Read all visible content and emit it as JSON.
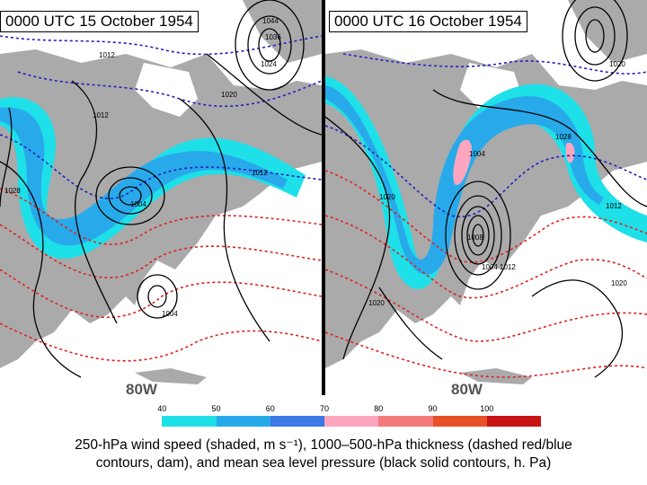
{
  "panels": [
    {
      "title": "0000 UTC 15 October 1954",
      "lon_label": "80W",
      "pressure_labels": [
        "1012",
        "1020",
        "1012",
        "1028",
        "1004",
        "1012",
        "1004",
        "1024",
        "1036",
        "1044"
      ]
    },
    {
      "title": "0000 UTC 16 October 1954",
      "lon_label": "80W",
      "pressure_labels": [
        "1004",
        "1020",
        "1028",
        "1020",
        "1012",
        "1008",
        "1004",
        "1012",
        "1020",
        "1020"
      ]
    }
  ],
  "colorbar": {
    "ticks": [
      "40",
      "50",
      "60",
      "70",
      "80",
      "90",
      "100"
    ],
    "colors": [
      "#ffffff",
      "#1ee0e8",
      "#28aaea",
      "#3c78e6",
      "#fca6c0",
      "#f47a7a",
      "#e85028",
      "#c81414"
    ]
  },
  "caption": {
    "line1": "250-hPa wind speed (shaded, m s⁻¹), 1000–500-hPa thickness (dashed red/blue",
    "line2": "contours, dam), and mean sea level pressure (black solid contours, h. Pa)"
  },
  "colors": {
    "land": "#aaaaaa",
    "water": "#ffffff",
    "pressure": "#000000",
    "thickness_warm": "#e02020",
    "thickness_cold": "#2020c0"
  }
}
